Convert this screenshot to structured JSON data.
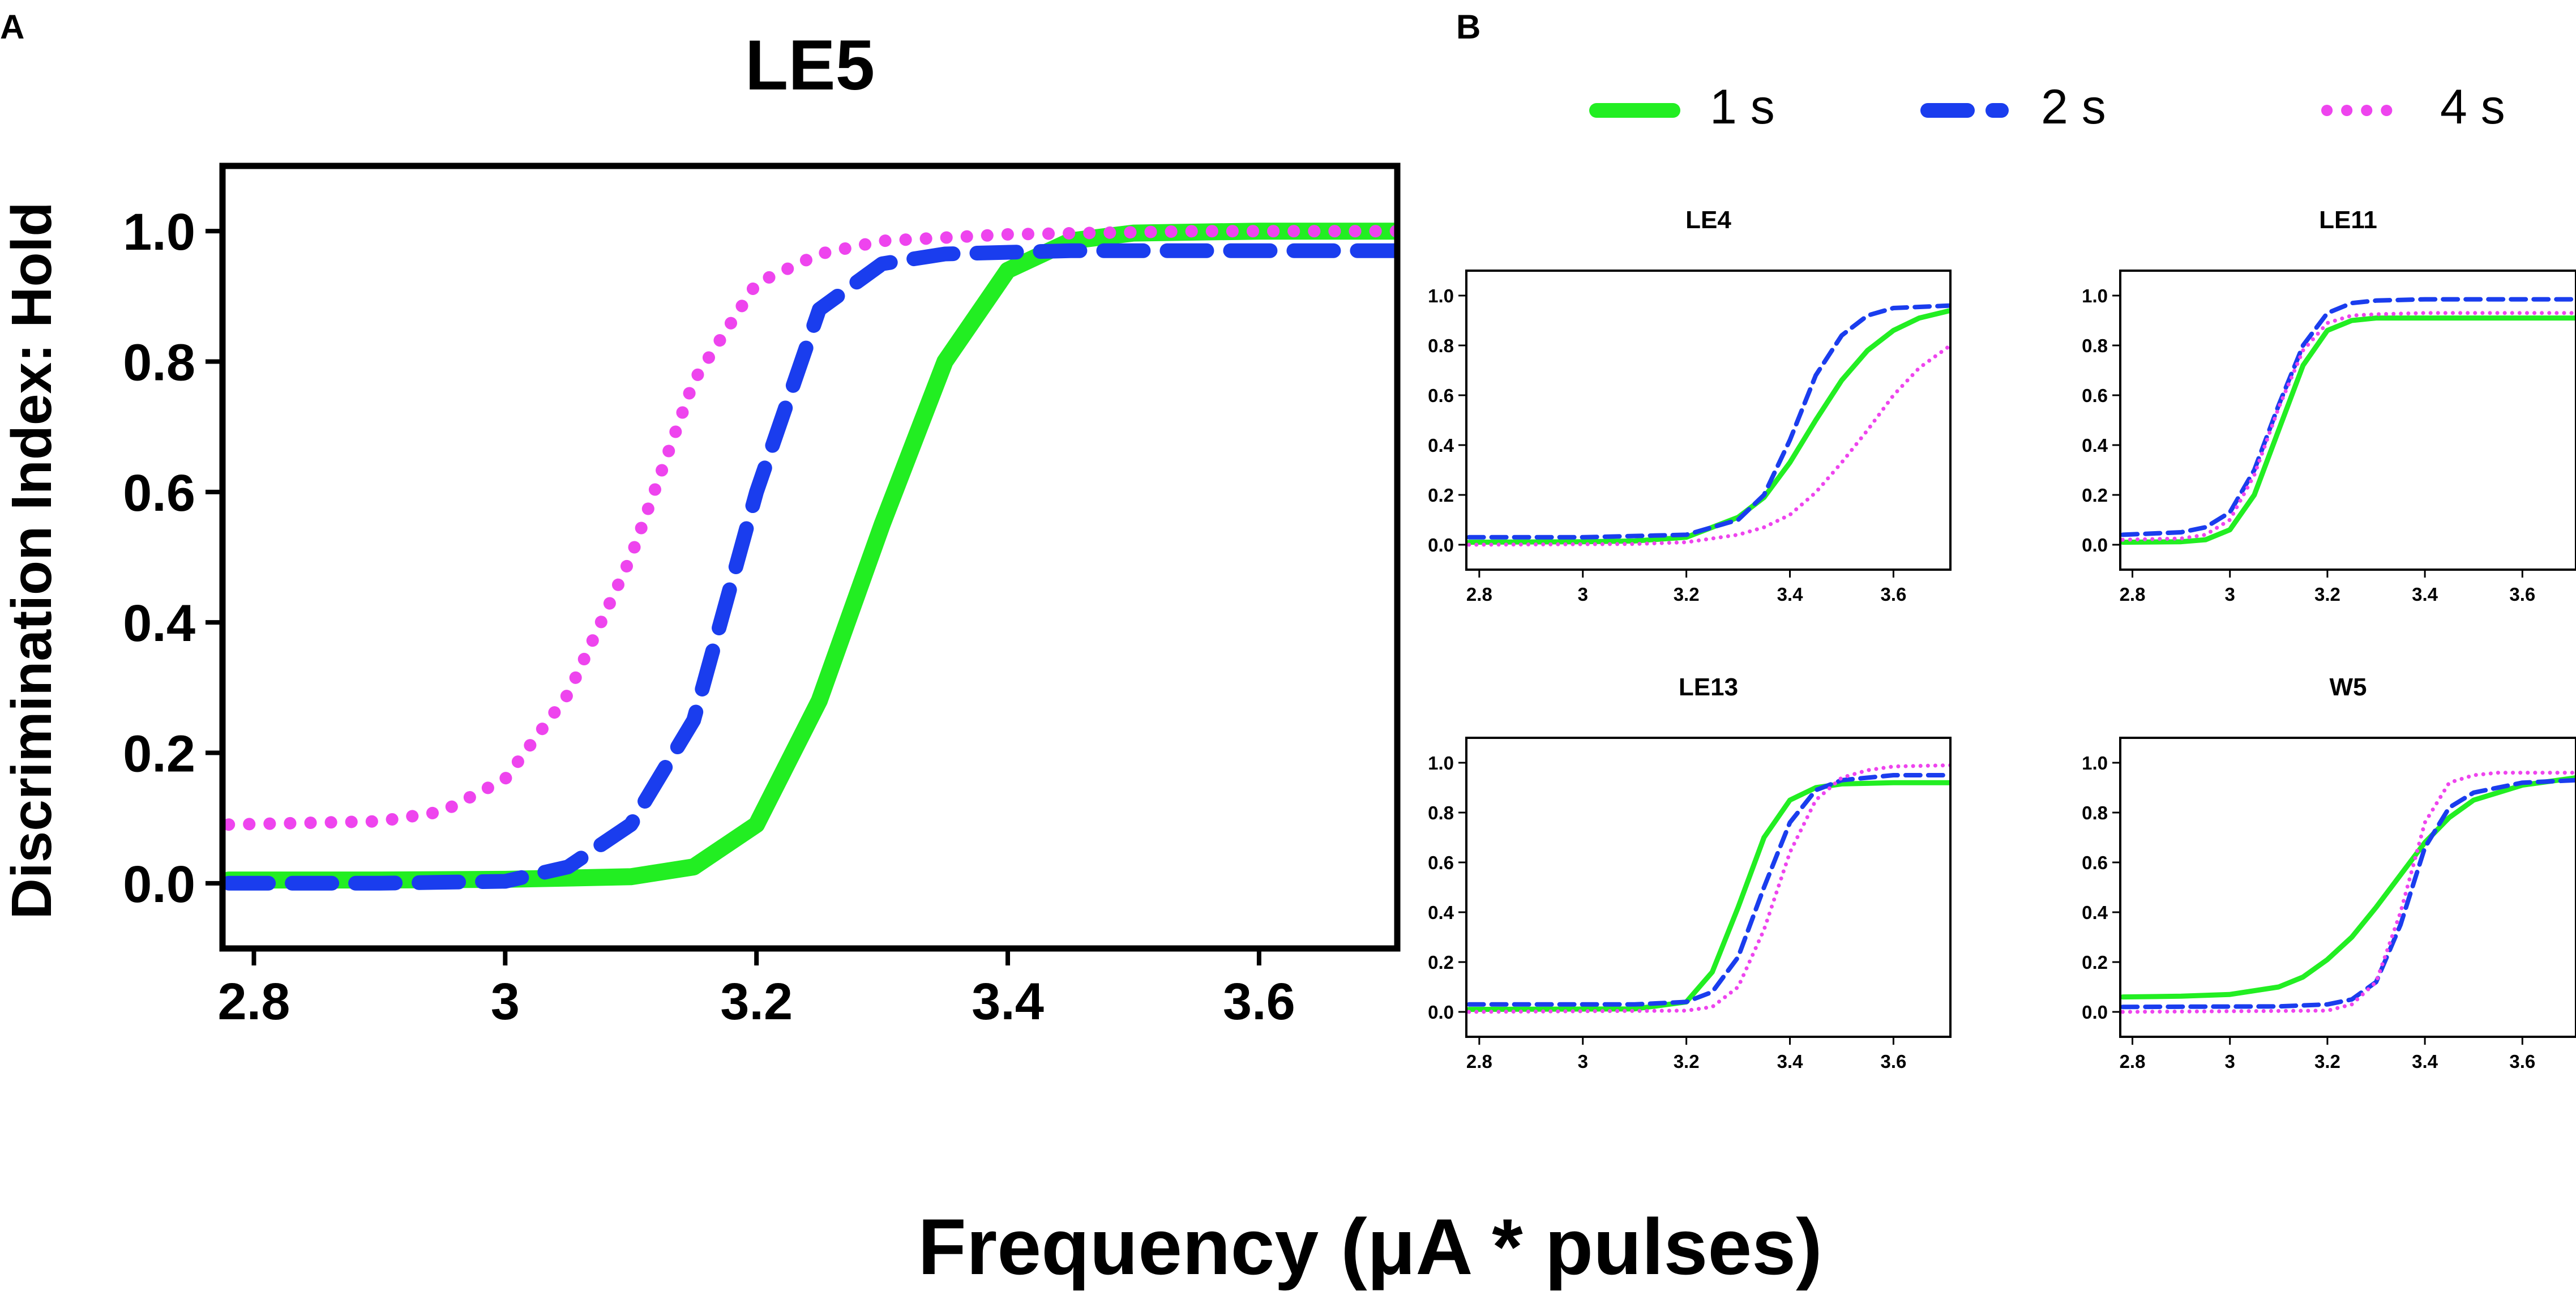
{
  "panel_labels": {
    "a": "A",
    "b": "B"
  },
  "x_axis_label": "Frequency (μA * pulses)",
  "y_axis_label": "Discrimination Index: Hold",
  "legend": [
    {
      "label": "1 s",
      "color": "#22ee22",
      "style": "solid"
    },
    {
      "label": "2 s",
      "color": "#1a3dee",
      "style": "dashed"
    },
    {
      "label": "4 s",
      "color": "#ee44ee",
      "style": "dotted"
    }
  ],
  "chart_data": [
    {
      "type": "line",
      "title": "LE5",
      "xlim": [
        2.775,
        3.71
      ],
      "ylim": [
        -0.1,
        1.1
      ],
      "x_ticks": [
        "2.8",
        "3",
        "3.2",
        "3.4",
        "3.6"
      ],
      "y_ticks": [
        "0.0",
        "0.2",
        "0.4",
        "0.6",
        "0.8",
        "1.0"
      ],
      "series": [
        {
          "name": "1 s",
          "x": [
            2.78,
            2.9,
            3.0,
            3.1,
            3.15,
            3.2,
            3.25,
            3.3,
            3.35,
            3.4,
            3.45,
            3.5,
            3.6,
            3.71
          ],
          "y": [
            0.005,
            0.005,
            0.006,
            0.01,
            0.025,
            0.09,
            0.28,
            0.55,
            0.8,
            0.94,
            0.985,
            0.997,
            1.0,
            1.0
          ]
        },
        {
          "name": "2 s",
          "x": [
            2.78,
            2.9,
            3.0,
            3.05,
            3.1,
            3.15,
            3.2,
            3.25,
            3.3,
            3.35,
            3.45,
            3.6,
            3.71
          ],
          "y": [
            0.0,
            0.0,
            0.003,
            0.025,
            0.09,
            0.25,
            0.6,
            0.88,
            0.95,
            0.965,
            0.97,
            0.97,
            0.97
          ]
        },
        {
          "name": "4 s",
          "x": [
            2.78,
            2.9,
            2.95,
            3.0,
            3.05,
            3.1,
            3.15,
            3.2,
            3.25,
            3.3,
            3.4,
            3.55,
            3.71
          ],
          "y": [
            0.09,
            0.095,
            0.11,
            0.16,
            0.29,
            0.5,
            0.77,
            0.92,
            0.965,
            0.985,
            0.995,
            1.0,
            1.0
          ]
        }
      ]
    },
    {
      "type": "line",
      "title": "LE4",
      "xlim": [
        2.775,
        3.71
      ],
      "ylim": [
        -0.1,
        1.1
      ],
      "x_ticks": [
        "2.8",
        "3",
        "3.2",
        "3.4",
        "3.6"
      ],
      "y_ticks": [
        "0.0",
        "0.2",
        "0.4",
        "0.6",
        "0.8",
        "1.0"
      ],
      "series": [
        {
          "name": "1 s",
          "x": [
            2.78,
            3.0,
            3.1,
            3.2,
            3.3,
            3.35,
            3.4,
            3.45,
            3.5,
            3.55,
            3.6,
            3.65,
            3.71
          ],
          "y": [
            0.01,
            0.012,
            0.015,
            0.03,
            0.11,
            0.19,
            0.33,
            0.5,
            0.66,
            0.78,
            0.86,
            0.91,
            0.94
          ]
        },
        {
          "name": "2 s",
          "x": [
            2.78,
            3.0,
            3.2,
            3.3,
            3.35,
            3.4,
            3.45,
            3.5,
            3.55,
            3.6,
            3.71
          ],
          "y": [
            0.03,
            0.03,
            0.04,
            0.1,
            0.2,
            0.42,
            0.68,
            0.84,
            0.92,
            0.95,
            0.96
          ]
        },
        {
          "name": "4 s",
          "x": [
            2.78,
            3.1,
            3.2,
            3.3,
            3.35,
            3.4,
            3.45,
            3.5,
            3.55,
            3.6,
            3.65,
            3.71
          ],
          "y": [
            0.0,
            0.003,
            0.01,
            0.04,
            0.07,
            0.12,
            0.21,
            0.33,
            0.46,
            0.6,
            0.71,
            0.8
          ]
        }
      ]
    },
    {
      "type": "line",
      "title": "LE11",
      "xlim": [
        2.775,
        3.71
      ],
      "ylim": [
        -0.1,
        1.1
      ],
      "x_ticks": [
        "2.8",
        "3",
        "3.2",
        "3.4",
        "3.6"
      ],
      "y_ticks": [
        "0.0",
        "0.2",
        "0.4",
        "0.6",
        "0.8",
        "1.0"
      ],
      "series": [
        {
          "name": "1 s",
          "x": [
            2.78,
            2.9,
            2.95,
            3.0,
            3.05,
            3.1,
            3.15,
            3.2,
            3.25,
            3.3,
            3.4,
            3.71
          ],
          "y": [
            0.01,
            0.012,
            0.02,
            0.06,
            0.2,
            0.46,
            0.72,
            0.86,
            0.9,
            0.91,
            0.91,
            0.91
          ]
        },
        {
          "name": "2 s",
          "x": [
            2.78,
            2.9,
            2.95,
            3.0,
            3.05,
            3.1,
            3.15,
            3.2,
            3.25,
            3.3,
            3.4,
            3.71
          ],
          "y": [
            0.04,
            0.05,
            0.07,
            0.13,
            0.3,
            0.56,
            0.8,
            0.93,
            0.97,
            0.98,
            0.985,
            0.985
          ]
        },
        {
          "name": "4 s",
          "x": [
            2.78,
            2.9,
            2.95,
            3.0,
            3.05,
            3.1,
            3.15,
            3.2,
            3.25,
            3.3,
            3.4,
            3.71
          ],
          "y": [
            0.02,
            0.025,
            0.04,
            0.1,
            0.28,
            0.55,
            0.78,
            0.89,
            0.92,
            0.925,
            0.93,
            0.93
          ]
        }
      ]
    },
    {
      "type": "line",
      "title": "LE13",
      "xlim": [
        2.775,
        3.71
      ],
      "ylim": [
        -0.1,
        1.1
      ],
      "x_ticks": [
        "2.8",
        "3",
        "3.2",
        "3.4",
        "3.6"
      ],
      "y_ticks": [
        "0.0",
        "0.2",
        "0.4",
        "0.6",
        "0.8",
        "1.0"
      ],
      "series": [
        {
          "name": "1 s",
          "x": [
            2.78,
            3.1,
            3.2,
            3.25,
            3.3,
            3.35,
            3.4,
            3.45,
            3.5,
            3.6,
            3.71
          ],
          "y": [
            0.01,
            0.012,
            0.04,
            0.16,
            0.42,
            0.7,
            0.85,
            0.9,
            0.915,
            0.92,
            0.92
          ]
        },
        {
          "name": "2 s",
          "x": [
            2.78,
            3.1,
            3.2,
            3.25,
            3.3,
            3.35,
            3.4,
            3.45,
            3.5,
            3.6,
            3.71
          ],
          "y": [
            0.03,
            0.03,
            0.04,
            0.08,
            0.22,
            0.5,
            0.76,
            0.89,
            0.93,
            0.95,
            0.95
          ]
        },
        {
          "name": "4 s",
          "x": [
            2.78,
            3.2,
            3.25,
            3.3,
            3.35,
            3.4,
            3.45,
            3.5,
            3.55,
            3.6,
            3.71
          ],
          "y": [
            0.0,
            0.005,
            0.02,
            0.1,
            0.33,
            0.64,
            0.85,
            0.94,
            0.97,
            0.985,
            0.99
          ]
        }
      ]
    },
    {
      "type": "line",
      "title": "W5",
      "xlim": [
        2.775,
        3.71
      ],
      "ylim": [
        -0.1,
        1.1
      ],
      "x_ticks": [
        "2.8",
        "3",
        "3.2",
        "3.4",
        "3.6"
      ],
      "y_ticks": [
        "0.0",
        "0.2",
        "0.4",
        "0.6",
        "0.8",
        "1.0"
      ],
      "series": [
        {
          "name": "1 s",
          "x": [
            2.78,
            2.9,
            3.0,
            3.1,
            3.15,
            3.2,
            3.25,
            3.3,
            3.35,
            3.4,
            3.45,
            3.5,
            3.6,
            3.71
          ],
          "y": [
            0.06,
            0.063,
            0.07,
            0.1,
            0.14,
            0.21,
            0.3,
            0.42,
            0.55,
            0.68,
            0.78,
            0.85,
            0.91,
            0.94
          ]
        },
        {
          "name": "2 s",
          "x": [
            2.78,
            3.1,
            3.2,
            3.25,
            3.3,
            3.35,
            3.4,
            3.45,
            3.5,
            3.6,
            3.71
          ],
          "y": [
            0.02,
            0.022,
            0.03,
            0.05,
            0.12,
            0.35,
            0.66,
            0.82,
            0.88,
            0.92,
            0.93
          ]
        },
        {
          "name": "4 s",
          "x": [
            2.78,
            3.2,
            3.25,
            3.3,
            3.35,
            3.4,
            3.45,
            3.5,
            3.55,
            3.71
          ],
          "y": [
            0.0,
            0.005,
            0.03,
            0.12,
            0.4,
            0.76,
            0.92,
            0.95,
            0.96,
            0.96
          ]
        }
      ]
    }
  ]
}
